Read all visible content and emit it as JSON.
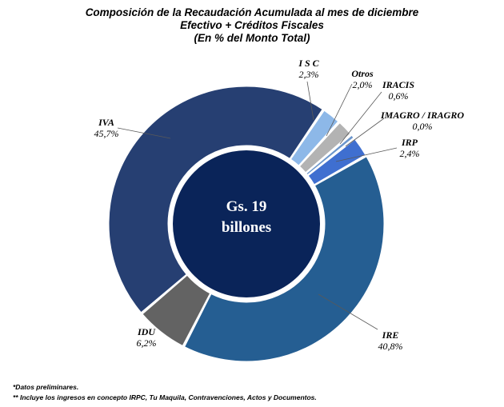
{
  "chart_data": {
    "type": "pie",
    "title": "Composición de la Recaudación Acumulada al mes de diciembre",
    "subtitle": "Efectivo + Créditos Fiscales",
    "subtitle2": "(En % del Monto Total)",
    "center_label": [
      "Gs. 19",
      "billones"
    ],
    "slices": [
      {
        "name": "I S C",
        "value": 2.3,
        "label": "2,3%",
        "color": "#8db8e8"
      },
      {
        "name": "Otros",
        "value": 2.0,
        "label": "2,0%",
        "color": "#b3b3b3"
      },
      {
        "name": "IRACIS",
        "value": 0.6,
        "label": "0,6%",
        "color": "#6b96cc"
      },
      {
        "name": "IMAGRO / IRAGRO",
        "value": 0.0,
        "label": "0,0%",
        "color": "#1f3d73"
      },
      {
        "name": "IRP",
        "value": 2.4,
        "label": "2,4%",
        "color": "#3f6fd0"
      },
      {
        "name": "IRE",
        "value": 40.8,
        "label": "40,8%",
        "color": "#255e92"
      },
      {
        "name": "IDU",
        "value": 6.2,
        "label": "6,2%",
        "color": "#636363"
      },
      {
        "name": "IVA",
        "value": 45.7,
        "label": "45,7%",
        "color": "#263f72"
      }
    ],
    "center_color": "#0a2459",
    "legend": "none"
  },
  "footnotes": [
    "*Datos preliminares.",
    "** Incluye los ingresos en concepto IRPC, Tu Maquila, Contravenciones, Actos y Documentos."
  ]
}
